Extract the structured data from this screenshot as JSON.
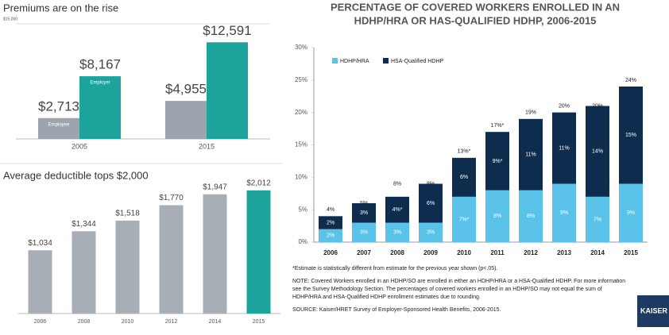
{
  "chart_data": [
    {
      "type": "bar",
      "title": "Premiums are on the rise",
      "categories": [
        "2005",
        "2015"
      ],
      "series": [
        {
          "name": "Employee",
          "color": "#9ea4ad",
          "values": [
            2713,
            4955
          ],
          "value_labels": [
            "$2,713",
            "$4,955"
          ]
        },
        {
          "name": "Employer",
          "color": "#1ba39c",
          "values": [
            8167,
            12591
          ],
          "value_labels": [
            "$8,167",
            "$12,591"
          ]
        }
      ],
      "ylim": [
        0,
        15000
      ],
      "yticks": [
        {
          "value": 15000,
          "label": "$15,000"
        }
      ]
    },
    {
      "type": "bar",
      "title": "Average deductible tops $2,000",
      "categories": [
        "2006",
        "2008",
        "2010",
        "2012",
        "2014",
        "2015"
      ],
      "values": [
        1034,
        1344,
        1518,
        1770,
        1947,
        2012
      ],
      "value_labels": [
        "$1,034",
        "$1,344",
        "$1,518",
        "$1,770",
        "$1,947",
        "$2,012"
      ],
      "colors": [
        "#a8aeb6",
        "#a8aeb6",
        "#a8aeb6",
        "#a8aeb6",
        "#a8aeb6",
        "#1ba39c"
      ],
      "ylim": [
        0,
        2100
      ]
    },
    {
      "type": "stacked_bar",
      "title": "PERCENTAGE OF COVERED WORKERS ENROLLED IN AN",
      "subtitle": "HDHP/HRA OR HAS-QUALIFIED HDHP, 2006-2015",
      "categories": [
        "2006",
        "2007",
        "2008",
        "2009",
        "2010",
        "2011",
        "2012",
        "2013",
        "2014",
        "2015"
      ],
      "series": [
        {
          "name": "HDHP/HRA",
          "color": "#5bc3ea",
          "values": [
            2,
            3,
            3,
            3,
            7,
            8,
            8,
            9,
            7,
            9
          ],
          "value_labels": [
            "2%",
            "3%",
            "3%",
            "3%",
            "7%*",
            "8%",
            "8%",
            "9%",
            "7%",
            "9%"
          ]
        },
        {
          "name": "HSA-Qualified HDHP",
          "color": "#0e2c4e",
          "values": [
            2,
            3,
            4,
            6,
            6,
            9,
            11,
            11,
            14,
            15
          ],
          "value_labels": [
            "2%",
            "3%",
            "4%*",
            "6%",
            "6%",
            "9%*",
            "11%",
            "11%",
            "14%",
            "15%"
          ]
        }
      ],
      "totals": {
        "values": [
          4,
          5,
          8,
          8,
          13,
          17,
          19,
          20,
          20,
          24
        ],
        "value_labels": [
          "4%",
          "5%",
          "8%",
          "8%",
          "13%*",
          "17%*",
          "19%",
          "20%",
          "20%",
          "24%"
        ]
      },
      "ylim": [
        0,
        30
      ],
      "yticks": [
        {
          "value": 0,
          "label": "0%"
        },
        {
          "value": 5,
          "label": "5%"
        },
        {
          "value": 10,
          "label": "10%"
        },
        {
          "value": 15,
          "label": "15%"
        },
        {
          "value": 20,
          "label": "20%"
        },
        {
          "value": 25,
          "label": "25%"
        },
        {
          "value": 30,
          "label": "30%"
        }
      ],
      "notes": [
        "*Estimate is statistically different from estimate for the previous year shown (p<.05).",
        "NOTE: Covered Workers enrolled in an HDHP/SO are enrolled in either an HDHP/HRA or a HSA-Qualified HDHP.  For more information see the Survey Methodology Section.  The percentages of covered workers enrolled in an HDHP/SO may not equal the sum of HDHP/HRA and HSA-Qualified HDHP enrollment estimates due to rounding.",
        "SOURCE:  Kaiser/HRET Survey of Employer-Sponsored Health Benefits, 2006-2015."
      ],
      "logo_text": "KAISER FAMILY"
    }
  ]
}
